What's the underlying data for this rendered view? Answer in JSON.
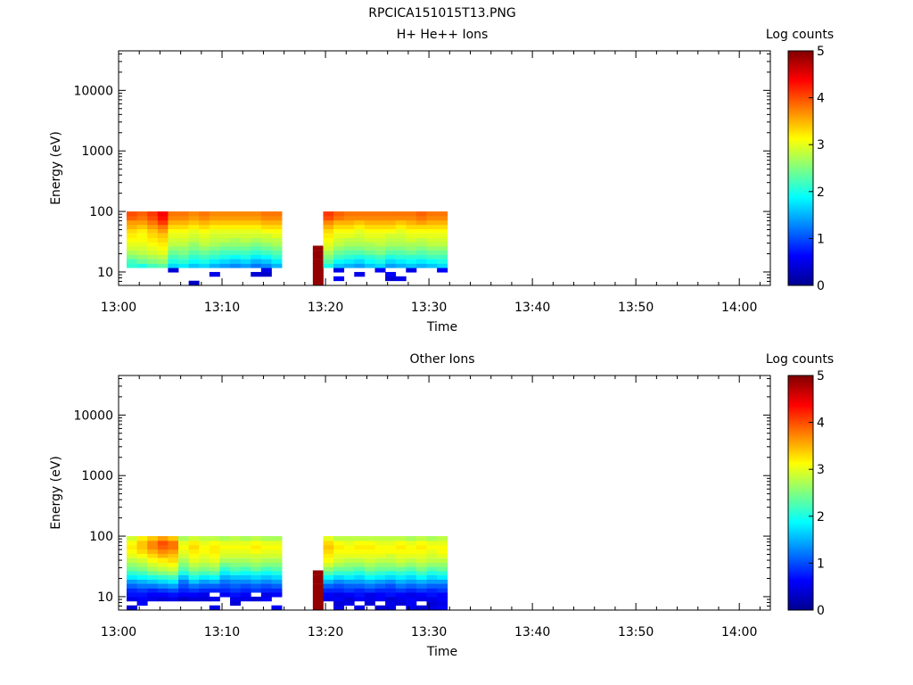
{
  "figure_title": "RPCICA151015T13.PNG",
  "colors": {
    "background": "#ffffff",
    "axis": "#000000",
    "colormap": [
      "#00008f",
      "#0000ff",
      "#0080ff",
      "#00ffff",
      "#80ff80",
      "#ffff00",
      "#ff8000",
      "#ff0000",
      "#800000"
    ]
  },
  "chart_data": [
    {
      "type": "heatmap",
      "title": "H+ He++ Ions",
      "xlabel": "Time",
      "ylabel": "Energy (eV)",
      "yscale": "log",
      "ylim": [
        6,
        45000
      ],
      "xlim": [
        "13:00",
        "14:03"
      ],
      "x_ticks": [
        "13:00",
        "13:10",
        "13:20",
        "13:30",
        "13:40",
        "13:50",
        "14:00"
      ],
      "y_ticks": [
        "10",
        "100",
        "1000",
        "10000"
      ],
      "colorbar": {
        "label": "Log counts",
        "range": [
          0,
          5
        ],
        "ticks": [
          "0",
          "1",
          "2",
          "3",
          "4",
          "5"
        ]
      },
      "time_bins": [
        "13:00",
        "13:01",
        "13:02",
        "13:03",
        "13:04",
        "13:05",
        "13:06",
        "13:07",
        "13:08",
        "13:09",
        "13:10",
        "13:11",
        "13:12",
        "13:13",
        "13:14",
        "13:18",
        "13:19",
        "13:20",
        "13:21",
        "13:22",
        "13:23",
        "13:24",
        "13:25",
        "13:26",
        "13:27",
        "13:28",
        "13:29",
        "13:30"
      ],
      "energy_bins_eV": [
        6.6,
        7.8,
        9.2,
        10.8,
        12.8,
        15,
        18,
        21,
        25,
        29,
        34,
        40,
        48,
        56,
        66,
        78,
        92
      ],
      "log_counts": [
        [
          null,
          null,
          null,
          null,
          2.1,
          2.2,
          2.5,
          2.7,
          2.9,
          3.0,
          3.1,
          3.2,
          3.3,
          3.5,
          3.6,
          3.9,
          4.0
        ],
        [
          null,
          null,
          null,
          null,
          2.0,
          2.4,
          2.6,
          2.8,
          2.9,
          3.0,
          3.1,
          3.1,
          3.2,
          3.4,
          3.6,
          3.8,
          3.9
        ],
        [
          null,
          null,
          null,
          null,
          2.2,
          2.5,
          2.7,
          2.9,
          3.0,
          3.1,
          3.2,
          3.3,
          3.4,
          3.6,
          3.8,
          4.0,
          4.1
        ],
        [
          null,
          null,
          null,
          null,
          2.3,
          2.6,
          2.8,
          3.0,
          3.1,
          3.2,
          3.3,
          3.4,
          3.6,
          3.8,
          4.1,
          4.3,
          4.4
        ],
        [
          null,
          null,
          null,
          0.4,
          1.7,
          2.0,
          2.2,
          2.4,
          2.6,
          2.8,
          2.9,
          3.0,
          3.1,
          3.3,
          3.5,
          3.7,
          3.8
        ],
        [
          null,
          null,
          null,
          null,
          1.8,
          2.1,
          2.3,
          2.5,
          2.6,
          2.8,
          2.9,
          3.0,
          3.1,
          3.3,
          3.5,
          3.7,
          3.8
        ],
        [
          0.3,
          null,
          null,
          null,
          1.6,
          1.9,
          2.1,
          2.3,
          2.5,
          2.6,
          2.8,
          2.9,
          3.0,
          3.2,
          3.4,
          3.6,
          3.7
        ],
        [
          null,
          null,
          null,
          null,
          1.7,
          2.0,
          2.2,
          2.4,
          2.6,
          2.8,
          2.9,
          3.0,
          3.1,
          3.3,
          3.5,
          3.7,
          3.8
        ],
        [
          null,
          null,
          0.5,
          null,
          1.5,
          1.8,
          2.1,
          2.3,
          2.5,
          2.7,
          2.8,
          2.9,
          3.0,
          3.2,
          3.4,
          3.6,
          3.7
        ],
        [
          null,
          null,
          null,
          null,
          1.4,
          1.7,
          2.0,
          2.2,
          2.4,
          2.6,
          2.8,
          2.9,
          3.0,
          3.2,
          3.4,
          3.6,
          3.7
        ],
        [
          null,
          null,
          null,
          null,
          1.3,
          1.6,
          1.9,
          2.2,
          2.4,
          2.6,
          2.7,
          2.9,
          3.0,
          3.2,
          3.4,
          3.6,
          3.7
        ],
        [
          null,
          null,
          null,
          null,
          1.4,
          1.7,
          2.0,
          2.2,
          2.4,
          2.6,
          2.8,
          2.9,
          3.0,
          3.2,
          3.4,
          3.6,
          3.7
        ],
        [
          null,
          null,
          0.4,
          null,
          1.2,
          1.5,
          1.8,
          2.1,
          2.3,
          2.5,
          2.7,
          2.9,
          3.0,
          3.2,
          3.4,
          3.6,
          3.7
        ],
        [
          null,
          null,
          0.3,
          0.5,
          1.3,
          1.6,
          1.9,
          2.2,
          2.4,
          2.6,
          2.8,
          2.9,
          3.1,
          3.3,
          3.5,
          3.7,
          3.8
        ],
        [
          null,
          null,
          null,
          null,
          1.5,
          1.8,
          2.1,
          2.3,
          2.5,
          2.7,
          2.8,
          3.0,
          3.1,
          3.3,
          3.5,
          3.7,
          3.8
        ],
        [
          4.9,
          4.9,
          4.9,
          4.9,
          4.9,
          4.9,
          4.9,
          4.9,
          4.9,
          null,
          null,
          null,
          null,
          null,
          null,
          null,
          null
        ],
        [
          null,
          null,
          null,
          null,
          2.0,
          2.3,
          2.5,
          2.7,
          2.9,
          3.0,
          3.1,
          3.2,
          3.3,
          3.5,
          3.7,
          4.0,
          4.1
        ],
        [
          null,
          0.6,
          null,
          0.5,
          1.6,
          1.9,
          2.2,
          2.4,
          2.6,
          2.8,
          2.9,
          3.0,
          3.1,
          3.3,
          3.5,
          3.8,
          3.9
        ],
        [
          null,
          null,
          null,
          null,
          1.5,
          1.8,
          2.1,
          2.3,
          2.5,
          2.7,
          2.8,
          3.0,
          3.1,
          3.3,
          3.5,
          3.7,
          3.8
        ],
        [
          null,
          null,
          0.5,
          null,
          1.4,
          1.7,
          2.0,
          2.3,
          2.5,
          2.7,
          2.8,
          2.9,
          3.0,
          3.2,
          3.4,
          3.7,
          3.8
        ],
        [
          null,
          null,
          null,
          null,
          1.6,
          1.9,
          2.1,
          2.4,
          2.6,
          2.7,
          2.9,
          3.0,
          3.1,
          3.3,
          3.5,
          3.7,
          3.8
        ],
        [
          null,
          null,
          null,
          0.6,
          1.7,
          2.0,
          2.2,
          2.5,
          2.6,
          2.8,
          2.9,
          3.0,
          3.1,
          3.3,
          3.5,
          3.7,
          3.8
        ],
        [
          null,
          0.4,
          0.6,
          null,
          1.4,
          1.7,
          2.0,
          2.3,
          2.5,
          2.7,
          2.8,
          2.9,
          3.1,
          3.3,
          3.5,
          3.7,
          3.8
        ],
        [
          null,
          0.5,
          null,
          null,
          1.5,
          1.8,
          2.1,
          2.3,
          2.5,
          2.7,
          2.8,
          2.9,
          3.0,
          3.2,
          3.4,
          3.7,
          3.8
        ],
        [
          null,
          null,
          null,
          0.5,
          1.6,
          1.9,
          2.1,
          2.4,
          2.6,
          2.7,
          2.9,
          3.0,
          3.1,
          3.3,
          3.5,
          3.7,
          3.8
        ],
        [
          null,
          null,
          null,
          null,
          1.5,
          1.8,
          2.1,
          2.3,
          2.5,
          2.7,
          2.8,
          3.0,
          3.1,
          3.3,
          3.6,
          3.8,
          3.9
        ],
        [
          null,
          null,
          null,
          null,
          1.6,
          1.9,
          2.2,
          2.4,
          2.6,
          2.8,
          2.9,
          3.0,
          3.1,
          3.3,
          3.5,
          3.7,
          3.8
        ],
        [
          null,
          null,
          null,
          0.6,
          1.7,
          2.0,
          2.2,
          2.4,
          2.6,
          2.8,
          2.9,
          3.0,
          3.1,
          3.3,
          3.5,
          3.7,
          3.8
        ]
      ]
    },
    {
      "type": "heatmap",
      "title": "Other Ions",
      "xlabel": "Time",
      "ylabel": "Energy (eV)",
      "yscale": "log",
      "ylim": [
        6,
        45000
      ],
      "xlim": [
        "13:00",
        "14:03"
      ],
      "x_ticks": [
        "13:00",
        "13:10",
        "13:20",
        "13:30",
        "13:40",
        "13:50",
        "14:00"
      ],
      "y_ticks": [
        "10",
        "100",
        "1000",
        "10000"
      ],
      "colorbar": {
        "label": "Log counts",
        "range": [
          0,
          5
        ],
        "ticks": [
          "0",
          "1",
          "2",
          "3",
          "4",
          "5"
        ]
      },
      "time_bins": [
        "13:00",
        "13:01",
        "13:02",
        "13:03",
        "13:04",
        "13:05",
        "13:06",
        "13:07",
        "13:08",
        "13:09",
        "13:10",
        "13:11",
        "13:12",
        "13:13",
        "13:14",
        "13:18",
        "13:19",
        "13:20",
        "13:21",
        "13:22",
        "13:23",
        "13:24",
        "13:25",
        "13:26",
        "13:27",
        "13:28",
        "13:29",
        "13:30"
      ],
      "energy_bins_eV": [
        6.6,
        7.8,
        9.2,
        10.8,
        12.8,
        15,
        18,
        21,
        25,
        29,
        34,
        40,
        48,
        56,
        66,
        78,
        92
      ],
      "log_counts": [
        [
          0.4,
          null,
          0.5,
          0.7,
          0.8,
          1.1,
          1.4,
          1.8,
          2.1,
          2.4,
          2.6,
          2.8,
          3.0,
          3.1,
          3.2,
          3.1,
          2.9
        ],
        [
          null,
          0.6,
          0.6,
          0.7,
          0.9,
          1.2,
          1.5,
          1.9,
          2.2,
          2.5,
          2.7,
          2.9,
          3.1,
          3.3,
          3.4,
          3.4,
          3.2
        ],
        [
          null,
          null,
          0.5,
          0.6,
          0.8,
          1.2,
          1.6,
          2.0,
          2.4,
          2.7,
          2.9,
          3.1,
          3.3,
          3.5,
          3.7,
          3.7,
          3.4
        ],
        [
          null,
          null,
          0.4,
          0.6,
          0.9,
          1.3,
          1.7,
          2.1,
          2.5,
          2.8,
          3.0,
          3.2,
          3.5,
          3.7,
          3.9,
          4.0,
          3.6
        ],
        [
          null,
          null,
          0.5,
          0.7,
          1.0,
          1.4,
          1.8,
          2.2,
          2.6,
          2.9,
          3.1,
          3.3,
          3.4,
          3.6,
          3.8,
          3.8,
          3.4
        ],
        [
          null,
          null,
          0.3,
          0.6,
          0.8,
          1.0,
          1.2,
          1.6,
          2.0,
          2.3,
          2.5,
          2.7,
          2.9,
          3.0,
          3.1,
          3.0,
          2.7
        ],
        [
          null,
          null,
          0.4,
          0.6,
          0.9,
          1.2,
          1.6,
          2.0,
          2.3,
          2.6,
          2.8,
          3.0,
          3.1,
          3.2,
          3.3,
          3.2,
          2.9
        ],
        [
          null,
          null,
          0.4,
          0.5,
          0.8,
          1.1,
          1.4,
          1.8,
          2.2,
          2.5,
          2.7,
          2.9,
          3.0,
          3.1,
          3.1,
          3.0,
          2.8
        ],
        [
          0.5,
          null,
          0.5,
          null,
          0.8,
          1.1,
          1.5,
          1.9,
          2.3,
          2.6,
          2.8,
          3.0,
          3.1,
          3.2,
          3.2,
          3.1,
          2.8
        ],
        [
          null,
          null,
          null,
          0.6,
          0.8,
          1.0,
          1.2,
          1.5,
          1.8,
          2.1,
          2.4,
          2.7,
          2.9,
          3.0,
          3.1,
          3.0,
          2.7
        ],
        [
          null,
          0.4,
          0.5,
          0.7,
          0.9,
          1.1,
          1.3,
          1.6,
          2.0,
          2.3,
          2.5,
          2.7,
          2.9,
          3.0,
          3.1,
          3.0,
          2.8
        ],
        [
          null,
          null,
          0.5,
          0.6,
          0.8,
          1.0,
          1.3,
          1.6,
          1.9,
          2.2,
          2.5,
          2.7,
          2.9,
          3.0,
          3.1,
          3.0,
          2.7
        ],
        [
          null,
          null,
          0.4,
          null,
          0.9,
          1.1,
          1.4,
          1.7,
          2.0,
          2.4,
          2.6,
          2.8,
          2.9,
          3.1,
          3.2,
          3.1,
          2.8
        ],
        [
          null,
          null,
          0.6,
          0.5,
          0.8,
          1.0,
          1.3,
          1.6,
          1.9,
          2.2,
          2.5,
          2.7,
          2.9,
          3.0,
          3.1,
          3.0,
          2.7
        ],
        [
          0.6,
          null,
          null,
          0.6,
          0.8,
          1.1,
          1.4,
          1.7,
          2.0,
          2.3,
          2.5,
          2.7,
          2.9,
          3.0,
          3.1,
          3.0,
          2.7
        ],
        [
          4.9,
          4.9,
          4.9,
          4.9,
          4.9,
          4.9,
          4.9,
          4.9,
          4.9,
          null,
          null,
          null,
          null,
          null,
          null,
          null,
          null
        ],
        [
          null,
          null,
          0.5,
          0.6,
          0.8,
          1.1,
          1.5,
          1.9,
          2.3,
          2.6,
          2.9,
          3.1,
          3.2,
          3.3,
          3.4,
          3.3,
          3.0
        ],
        [
          0.5,
          0.4,
          0.6,
          0.5,
          0.8,
          1.0,
          1.3,
          1.7,
          2.1,
          2.4,
          2.7,
          2.9,
          3.0,
          3.1,
          3.2,
          3.1,
          2.8
        ],
        [
          null,
          0.5,
          0.4,
          0.6,
          0.9,
          1.1,
          1.4,
          1.8,
          2.1,
          2.4,
          2.6,
          2.8,
          3.0,
          3.1,
          3.1,
          3.0,
          2.8
        ],
        [
          0.5,
          null,
          0.6,
          0.7,
          0.8,
          1.1,
          1.4,
          1.7,
          2.0,
          2.3,
          2.6,
          2.8,
          3.0,
          3.1,
          3.2,
          3.1,
          2.8
        ],
        [
          null,
          0.4,
          0.5,
          0.5,
          0.9,
          1.2,
          1.5,
          1.9,
          2.2,
          2.5,
          2.7,
          2.9,
          3.0,
          3.1,
          3.2,
          3.1,
          2.8
        ],
        [
          0.4,
          null,
          0.6,
          0.6,
          0.8,
          1.1,
          1.4,
          1.8,
          2.1,
          2.4,
          2.6,
          2.8,
          3.0,
          3.1,
          3.1,
          3.0,
          2.8
        ],
        [
          0.5,
          0.5,
          0.4,
          0.7,
          0.8,
          1.0,
          1.3,
          1.7,
          2.0,
          2.4,
          2.6,
          2.8,
          2.9,
          3.1,
          3.1,
          3.0,
          2.8
        ],
        [
          null,
          0.4,
          0.5,
          0.6,
          0.9,
          1.2,
          1.5,
          1.8,
          2.1,
          2.4,
          2.7,
          2.9,
          3.0,
          3.1,
          3.2,
          3.1,
          2.8
        ],
        [
          0.5,
          0.6,
          0.6,
          0.5,
          0.8,
          1.1,
          1.4,
          1.7,
          2.0,
          2.3,
          2.6,
          2.8,
          3.0,
          3.1,
          3.1,
          3.0,
          2.7
        ],
        [
          0.4,
          null,
          0.5,
          0.6,
          0.9,
          1.2,
          1.5,
          1.9,
          2.2,
          2.5,
          2.7,
          2.9,
          3.0,
          3.1,
          3.2,
          3.1,
          2.8
        ],
        [
          0.5,
          0.4,
          0.5,
          0.7,
          0.8,
          1.1,
          1.4,
          1.7,
          2.0,
          2.3,
          2.6,
          2.8,
          2.9,
          3.0,
          3.1,
          3.0,
          2.7
        ],
        [
          0.6,
          0.5,
          0.6,
          0.6,
          0.9,
          1.1,
          1.4,
          1.8,
          2.1,
          2.4,
          2.6,
          2.8,
          3.0,
          3.1,
          3.1,
          3.0,
          2.8
        ]
      ]
    }
  ]
}
